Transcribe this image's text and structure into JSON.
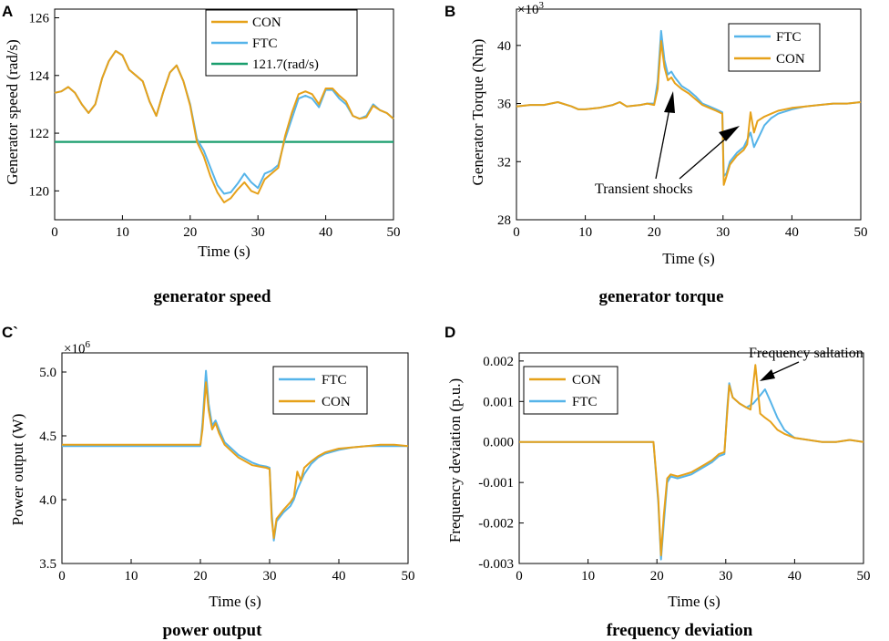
{
  "chart_data": [
    {
      "panel_letter": "A",
      "type": "line",
      "caption": "generator speed",
      "xlabel": "Time (s)",
      "ylabel": "Generator speed (rad/s)",
      "xlim": [
        0,
        50
      ],
      "ylim": [
        119,
        126.3
      ],
      "x_ticks": [
        0,
        10,
        20,
        30,
        40,
        50
      ],
      "y_ticks": [
        120,
        122,
        124,
        126
      ],
      "y_tick_labels": [
        "120",
        "122",
        "124",
        "126"
      ],
      "legend": [
        "CON",
        "FTC",
        "121.7(rad/s)"
      ],
      "series": [
        {
          "name": "FTC",
          "color": "#56B4E9",
          "x": [
            0,
            1,
            2,
            3,
            4,
            5,
            6,
            7,
            8,
            9,
            10,
            11,
            12,
            13,
            14,
            15,
            16,
            17,
            18,
            19,
            20,
            21,
            22,
            23,
            24,
            25,
            26,
            27,
            28,
            29,
            30,
            31,
            32,
            33,
            34,
            35,
            36,
            37,
            38,
            39,
            40,
            41,
            42,
            43,
            44,
            45,
            46,
            47,
            48,
            49,
            50
          ],
          "y": [
            123.4,
            123.45,
            123.6,
            123.4,
            123.0,
            122.7,
            123.0,
            123.9,
            124.5,
            124.85,
            124.7,
            124.2,
            124.0,
            123.8,
            123.1,
            122.6,
            123.4,
            124.1,
            124.35,
            123.8,
            123.0,
            121.8,
            121.4,
            120.8,
            120.2,
            119.9,
            119.95,
            120.25,
            120.6,
            120.3,
            120.1,
            120.6,
            120.7,
            120.9,
            121.8,
            122.5,
            123.2,
            123.3,
            123.2,
            122.9,
            123.5,
            123.5,
            123.2,
            123.0,
            122.6,
            122.5,
            122.6,
            123.0,
            122.8,
            122.7,
            122.5
          ]
        },
        {
          "name": "CON",
          "color": "#E6A11A",
          "x": [
            0,
            1,
            2,
            3,
            4,
            5,
            6,
            7,
            8,
            9,
            10,
            11,
            12,
            13,
            14,
            15,
            16,
            17,
            18,
            19,
            20,
            21,
            22,
            23,
            24,
            25,
            26,
            27,
            28,
            29,
            30,
            31,
            32,
            33,
            34,
            35,
            36,
            37,
            38,
            39,
            40,
            41,
            42,
            43,
            44,
            45,
            46,
            47,
            48,
            49,
            50
          ],
          "y": [
            123.4,
            123.45,
            123.6,
            123.4,
            123.0,
            122.7,
            123.0,
            123.9,
            124.5,
            124.85,
            124.7,
            124.2,
            124.0,
            123.8,
            123.1,
            122.6,
            123.4,
            124.1,
            124.35,
            123.8,
            122.95,
            121.7,
            121.2,
            120.5,
            119.95,
            119.6,
            119.75,
            120.05,
            120.3,
            120.0,
            119.9,
            120.4,
            120.6,
            120.8,
            121.9,
            122.7,
            123.35,
            123.45,
            123.35,
            123.0,
            123.55,
            123.55,
            123.3,
            123.1,
            122.6,
            122.5,
            122.55,
            122.95,
            122.8,
            122.7,
            122.5
          ]
        },
        {
          "name": "121.7(rad/s)",
          "color": "#1A9E6E",
          "x": [
            0,
            50
          ],
          "y": [
            121.7,
            121.7
          ]
        }
      ]
    },
    {
      "panel_letter": "B",
      "type": "line",
      "caption": "generator torque",
      "xlabel": "Time (s)",
      "ylabel": "Generator Torque (Nm)",
      "multiplier_base": "×10",
      "multiplier_exp": "3",
      "xlim": [
        0,
        50
      ],
      "ylim": [
        28,
        42.5
      ],
      "x_ticks": [
        0,
        10,
        20,
        30,
        40,
        50
      ],
      "y_ticks": [
        28,
        32,
        36,
        40
      ],
      "y_tick_labels": [
        "28",
        "32",
        "36",
        "40"
      ],
      "legend": [
        "FTC",
        "CON"
      ],
      "annotation": "Transient shocks",
      "series": [
        {
          "name": "FTC",
          "color": "#56B4E9",
          "x": [
            0,
            2,
            4,
            6,
            8,
            9,
            10,
            12,
            14,
            15,
            16,
            18,
            19,
            20,
            20.5,
            21,
            21.5,
            22,
            22.5,
            23,
            24,
            25,
            26,
            27,
            28,
            29,
            29.9,
            30.1,
            30.5,
            31,
            32,
            33,
            33.5,
            34,
            34.5,
            35,
            36,
            37,
            38,
            40,
            42,
            44,
            46,
            48,
            50
          ],
          "y": [
            35.8,
            35.9,
            35.9,
            36.1,
            35.8,
            35.6,
            35.6,
            35.7,
            35.9,
            36.1,
            35.8,
            35.9,
            36.0,
            36.0,
            37.5,
            41.0,
            39.0,
            38.0,
            38.2,
            37.8,
            37.2,
            36.9,
            36.5,
            36.0,
            35.8,
            35.6,
            35.4,
            31.0,
            31.2,
            32.0,
            32.6,
            33.0,
            33.5,
            34.0,
            33.0,
            33.5,
            34.5,
            35.0,
            35.3,
            35.6,
            35.8,
            35.9,
            36.0,
            36.0,
            36.1
          ]
        },
        {
          "name": "CON",
          "color": "#E6A11A",
          "x": [
            0,
            2,
            4,
            6,
            8,
            9,
            10,
            12,
            14,
            15,
            16,
            18,
            19,
            20,
            20.5,
            21,
            21.5,
            22,
            22.5,
            23,
            24,
            25,
            26,
            27,
            28,
            29,
            29.9,
            30.1,
            30.5,
            31,
            32,
            33,
            33.5,
            34,
            34.5,
            35,
            36,
            37,
            38,
            40,
            42,
            44,
            46,
            48,
            50
          ],
          "y": [
            35.8,
            35.9,
            35.9,
            36.1,
            35.8,
            35.6,
            35.6,
            35.7,
            35.9,
            36.1,
            35.8,
            35.9,
            36.0,
            35.9,
            37.0,
            40.3,
            38.5,
            37.6,
            37.8,
            37.4,
            37.0,
            36.7,
            36.3,
            35.9,
            35.7,
            35.5,
            35.3,
            30.4,
            31.0,
            31.8,
            32.4,
            32.8,
            33.2,
            35.4,
            34.0,
            34.8,
            35.1,
            35.3,
            35.5,
            35.7,
            35.8,
            35.9,
            36.0,
            36.0,
            36.1
          ]
        }
      ]
    },
    {
      "panel_letter": "C`",
      "type": "line",
      "caption": "power output",
      "xlabel": "Time (s)",
      "ylabel": "Power output (W)",
      "multiplier_base": "×10",
      "multiplier_exp": "6",
      "xlim": [
        0,
        50
      ],
      "ylim": [
        3.5,
        5.15
      ],
      "x_ticks": [
        0,
        10,
        20,
        30,
        40,
        50
      ],
      "y_ticks": [
        3.5,
        4.0,
        4.5,
        5.0
      ],
      "y_tick_labels": [
        "3.5",
        "4.0",
        "4.5",
        "5.0"
      ],
      "legend": [
        "FTC",
        "CON"
      ],
      "series": [
        {
          "name": "FTC",
          "color": "#56B4E9",
          "x": [
            0,
            5,
            10,
            15,
            20,
            20.3,
            20.8,
            21.2,
            21.7,
            22.2,
            22.7,
            23.5,
            24.5,
            25.5,
            26.5,
            27.5,
            28.5,
            29.5,
            30,
            30.3,
            30.6,
            31,
            32,
            33,
            33.5,
            34,
            34.5,
            35,
            36,
            37,
            38,
            40,
            42,
            44,
            46,
            48,
            50
          ],
          "y": [
            4.42,
            4.42,
            4.42,
            4.42,
            4.42,
            4.6,
            5.01,
            4.75,
            4.58,
            4.62,
            4.55,
            4.45,
            4.4,
            4.35,
            4.32,
            4.29,
            4.27,
            4.26,
            4.25,
            3.9,
            3.68,
            3.83,
            3.9,
            3.95,
            4.0,
            4.08,
            4.14,
            4.2,
            4.28,
            4.33,
            4.36,
            4.39,
            4.41,
            4.42,
            4.42,
            4.42,
            4.42
          ]
        },
        {
          "name": "CON",
          "color": "#E6A11A",
          "x": [
            0,
            5,
            10,
            15,
            20,
            20.3,
            20.8,
            21.2,
            21.7,
            22.2,
            22.7,
            23.5,
            24.5,
            25.5,
            26.5,
            27.5,
            28.5,
            29.5,
            30,
            30.3,
            30.6,
            31,
            32,
            33,
            33.5,
            34,
            34.5,
            35,
            36,
            37,
            38,
            40,
            42,
            44,
            46,
            48,
            50
          ],
          "y": [
            4.43,
            4.43,
            4.43,
            4.43,
            4.43,
            4.55,
            4.92,
            4.7,
            4.55,
            4.6,
            4.52,
            4.43,
            4.38,
            4.33,
            4.3,
            4.27,
            4.26,
            4.25,
            4.24,
            3.85,
            3.7,
            3.85,
            3.92,
            3.98,
            4.02,
            4.22,
            4.15,
            4.25,
            4.3,
            4.34,
            4.37,
            4.4,
            4.41,
            4.42,
            4.43,
            4.43,
            4.42
          ]
        }
      ]
    },
    {
      "panel_letter": "D",
      "type": "line",
      "caption": "frequency deviation",
      "xlabel": "Time (s)",
      "ylabel": "Frequency deviation (p.u.)",
      "xlim": [
        0,
        50
      ],
      "ylim": [
        -0.003,
        0.0022
      ],
      "x_ticks": [
        0,
        10,
        20,
        30,
        40,
        50
      ],
      "y_ticks": [
        -0.003,
        -0.002,
        -0.001,
        0.0,
        0.001,
        0.002
      ],
      "y_tick_labels": [
        "-0.003",
        "-0.002",
        "-0.001",
        "0.000",
        "0.001",
        "0.002"
      ],
      "legend": [
        "CON",
        "FTC"
      ],
      "annotation": "Frequency saltation",
      "series": [
        {
          "name": "FTC",
          "color": "#56B4E9",
          "x": [
            0,
            5,
            10,
            15,
            19.5,
            20.2,
            20.6,
            21,
            21.5,
            22,
            23,
            24,
            25,
            26,
            27,
            28,
            29,
            29.8,
            30.2,
            30.5,
            31,
            32,
            33,
            34,
            35,
            35.7,
            36.5,
            37.5,
            38.5,
            40,
            42,
            44,
            46,
            48,
            50
          ],
          "y": [
            0.0,
            0.0,
            0.0,
            0.0,
            0.0,
            -0.0015,
            -0.0029,
            -0.002,
            -0.001,
            -0.00085,
            -0.0009,
            -0.00085,
            -0.0008,
            -0.0007,
            -0.0006,
            -0.0005,
            -0.00035,
            -0.0003,
            0.0008,
            0.00145,
            0.0011,
            0.00095,
            0.00085,
            0.00095,
            0.00115,
            0.0013,
            0.001,
            0.0006,
            0.0003,
            0.0001,
            5e-05,
            0.0,
            0.0,
            5e-05,
            0.0
          ]
        },
        {
          "name": "CON",
          "color": "#E6A11A",
          "x": [
            0,
            5,
            10,
            15,
            19.5,
            20.2,
            20.6,
            21,
            21.5,
            22,
            23,
            24,
            25,
            26,
            27,
            28,
            29,
            29.8,
            30.2,
            30.5,
            31,
            32,
            33,
            33.6,
            34.3,
            35,
            35.7,
            36.5,
            37.5,
            38.5,
            40,
            42,
            44,
            46,
            48,
            50
          ],
          "y": [
            0.0,
            0.0,
            0.0,
            0.0,
            0.0,
            -0.0014,
            -0.0028,
            -0.0018,
            -0.0009,
            -0.0008,
            -0.00085,
            -0.0008,
            -0.00075,
            -0.00065,
            -0.00055,
            -0.00045,
            -0.0003,
            -0.00025,
            0.0007,
            0.0014,
            0.0011,
            0.00095,
            0.00085,
            0.0008,
            0.0019,
            0.0007,
            0.0006,
            0.0005,
            0.0003,
            0.0002,
            0.0001,
            5e-05,
            0.0,
            0.0,
            5e-05,
            0.0
          ]
        }
      ]
    }
  ]
}
